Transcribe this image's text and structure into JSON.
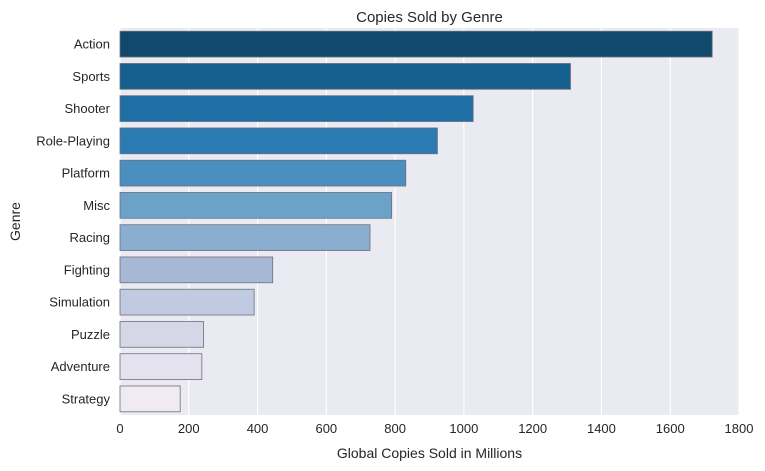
{
  "chart_data": {
    "type": "bar",
    "orientation": "horizontal",
    "title": "Copies Sold by Genre",
    "xlabel": "Global Copies Sold in Millions",
    "ylabel": "Genre",
    "xlim": [
      0,
      1800
    ],
    "xticks": [
      "0",
      "200",
      "400",
      "600",
      "800",
      "1000",
      "1200",
      "1400",
      "1600",
      "1800"
    ],
    "grid": true,
    "categories": [
      "Action",
      "Sports",
      "Shooter",
      "Role-Playing",
      "Platform",
      "Misc",
      "Racing",
      "Fighting",
      "Simulation",
      "Puzzle",
      "Adventure",
      "Strategy"
    ],
    "values": [
      1722,
      1310,
      1027,
      923,
      831,
      790,
      727,
      444,
      390,
      243,
      238,
      175
    ],
    "colors": [
      "#11496d",
      "#15608f",
      "#1f6ea6",
      "#2b7bb3",
      "#4a8fbd",
      "#6ca2c8",
      "#8aaed0",
      "#a7b8d6",
      "#c0cbe2",
      "#d5d6e6",
      "#e4e2ef",
      "#f0eaf5"
    ]
  }
}
